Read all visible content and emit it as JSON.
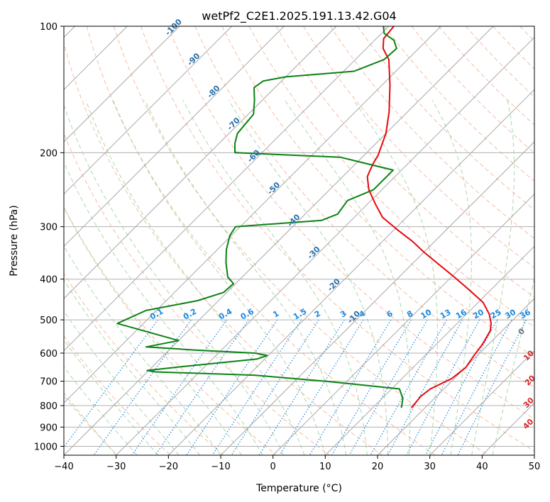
{
  "chart_data": {
    "type": "skew-t",
    "title": "wetPf2_C2E1.2025.191.13.42.G04",
    "xlabel": "Temperature (°C)",
    "ylabel": "Pressure (hPa)",
    "xlim": [
      -40,
      50
    ],
    "ylim_pressure_hpa": [
      1050,
      100
    ],
    "y_scale": "log",
    "grid": true,
    "x_ticks": [
      -40,
      -30,
      -20,
      -10,
      0,
      10,
      20,
      30,
      40,
      50
    ],
    "x_tick_labels": [
      "−40",
      "−30",
      "−20",
      "−10",
      "0",
      "10",
      "20",
      "30",
      "40",
      "50"
    ],
    "y_ticks": [
      1000,
      900,
      800,
      700,
      600,
      500,
      400,
      300,
      200,
      100
    ],
    "y_tick_labels": [
      "1000",
      "900",
      "800",
      "700",
      "600",
      "500",
      "400",
      "300",
      "200",
      "100"
    ],
    "colors": {
      "temperature": "#e8070b",
      "dewpoint": "#0b8213",
      "isotherms": "#a8a8a8",
      "dry_adiabats": "#f4a582",
      "moist_adiabats": "#8fca8f",
      "mixing_ratio": "#1a88e0",
      "isotherm_labels": "#2a6fa8",
      "moist_labels": "#d62728"
    },
    "series": [
      {
        "key": "temperature",
        "points": [
          [
            17.4,
            810
          ],
          [
            17.0,
            760
          ],
          [
            17.4,
            730
          ],
          [
            19.5,
            690
          ],
          [
            20.1,
            650
          ],
          [
            19.4,
            610
          ],
          [
            18.8,
            570
          ],
          [
            17.7,
            530
          ],
          [
            16.5,
            510
          ],
          [
            14.4,
            485
          ],
          [
            11.0,
            455
          ],
          [
            6.0,
            425
          ],
          [
            0.5,
            395
          ],
          [
            -4.6,
            370
          ],
          [
            -10.0,
            345
          ],
          [
            -14.3,
            325
          ],
          [
            -19.4,
            305
          ],
          [
            -24.6,
            285
          ],
          [
            -28.5,
            265
          ],
          [
            -32.5,
            245
          ],
          [
            -35.3,
            228
          ],
          [
            -36.0,
            220
          ],
          [
            -36.7,
            212
          ],
          [
            -37.3,
            203
          ],
          [
            -38.2,
            195
          ],
          [
            -40.0,
            180
          ],
          [
            -43.5,
            160
          ],
          [
            -48.5,
            138
          ],
          [
            -53.6,
            120
          ],
          [
            -56.8,
            113
          ],
          [
            -58.6,
            107
          ],
          [
            -59.0,
            100
          ]
        ]
      },
      {
        "key": "dewpoint",
        "points": [
          [
            15.5,
            810
          ],
          [
            14.0,
            770
          ],
          [
            11.5,
            730
          ],
          [
            -4.0,
            700
          ],
          [
            -19.0,
            677
          ],
          [
            -38.5,
            665
          ],
          [
            -40.3,
            660
          ],
          [
            -33.8,
            645
          ],
          [
            -21.5,
            620
          ],
          [
            -20.2,
            608
          ],
          [
            -23.0,
            600
          ],
          [
            -35.0,
            590
          ],
          [
            -45.0,
            580
          ],
          [
            -40.0,
            560
          ],
          [
            -55.0,
            510
          ],
          [
            -52.0,
            475
          ],
          [
            -44.0,
            450
          ],
          [
            -40.6,
            430
          ],
          [
            -40.4,
            410
          ],
          [
            -42.8,
            395
          ],
          [
            -45.9,
            365
          ],
          [
            -48.3,
            340
          ],
          [
            -50.3,
            315
          ],
          [
            -50.9,
            300
          ],
          [
            -35.7,
            290
          ],
          [
            -33.8,
            280
          ],
          [
            -34.5,
            260
          ],
          [
            -31.6,
            245
          ],
          [
            -31.6,
            220
          ],
          [
            -44.2,
            205
          ],
          [
            -65.2,
            200
          ],
          [
            -67.0,
            190
          ],
          [
            -68.4,
            180
          ],
          [
            -69.0,
            162
          ],
          [
            -71.5,
            150
          ],
          [
            -74.0,
            140
          ],
          [
            -73.5,
            135
          ],
          [
            -70.0,
            132
          ],
          [
            -58.0,
            128
          ],
          [
            -54.5,
            120
          ],
          [
            -54.2,
            113
          ],
          [
            -56.3,
            108
          ],
          [
            -59.5,
            104
          ],
          [
            -61.0,
            100
          ]
        ]
      }
    ],
    "isotherm_labels": [
      "-100",
      "-90",
      "-80",
      "-70",
      "-60",
      "-50",
      "-40",
      "-30",
      "-20",
      "-10"
    ],
    "isotherm_label_values": [
      -100,
      -90,
      -80,
      -70,
      -60,
      -50,
      -40,
      -30,
      -20,
      -10
    ],
    "moist_adiabat_labels": [
      "0",
      "10",
      "20",
      "30",
      "40"
    ],
    "moist_adiabat_label_values": [
      0,
      10,
      20,
      30,
      40
    ],
    "mixing_ratio_labels": [
      "0.1",
      "0.2",
      "0.4",
      "0.6",
      "1",
      "1.5",
      "2",
      "3",
      "4",
      "6",
      "8",
      "10",
      "13",
      "16",
      "20",
      "25",
      "30",
      "36"
    ],
    "mixing_ratio_values": [
      0.1,
      0.2,
      0.4,
      0.6,
      1,
      1.5,
      2,
      3,
      4,
      6,
      8,
      10,
      13,
      16,
      20,
      25,
      30,
      36
    ],
    "mixing_ratio_label_pressure_hpa": 500
  }
}
